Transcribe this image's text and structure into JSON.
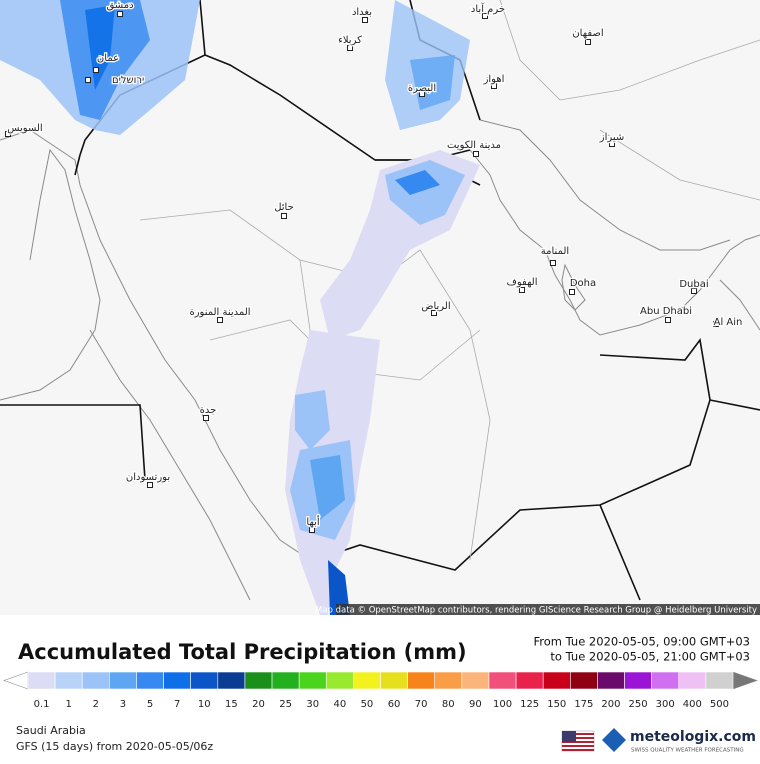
{
  "map": {
    "attribution": "Map data © OpenStreetMap contributors, rendering GIScience Research Group @ Heidelberg University",
    "cities": [
      "دمشق",
      "بغداد",
      "خرم آباد",
      "كربلاء",
      "اصفهان",
      "عمان",
      "ירושלים",
      "البصرة",
      "اهواز",
      "السويس",
      "مدينة الكويت",
      "شيراز",
      "حائل",
      "المنامة",
      "الهفوف",
      "Doha",
      "Dubai",
      "الرياض",
      "المدينة المنورة",
      "Abu Dhabi",
      "Al Ain",
      "جدة",
      "بورتسودان",
      "أبها"
    ]
  },
  "legend": {
    "title": "Accumulated Total Precipitation (mm)",
    "from": "From Tue 2020-05-05, 09:00 GMT+03",
    "to": "to Tue 2020-05-05, 21:00 GMT+03",
    "bins": [
      {
        "label": 0.1,
        "color": "#dcdcf5"
      },
      {
        "label": 1,
        "color": "#b9d2f7"
      },
      {
        "label": 2,
        "color": "#9cc3f7"
      },
      {
        "label": 3,
        "color": "#5fa6f2"
      },
      {
        "label": 5,
        "color": "#3689f0"
      },
      {
        "label": 7,
        "color": "#0f6fe8"
      },
      {
        "label": 10,
        "color": "#0a56c8"
      },
      {
        "label": 15,
        "color": "#0a3c94"
      },
      {
        "label": 20,
        "color": "#1a8f1a"
      },
      {
        "label": 25,
        "color": "#22b01e"
      },
      {
        "label": 30,
        "color": "#4ad41e"
      },
      {
        "label": 40,
        "color": "#98ea2e"
      },
      {
        "label": 50,
        "color": "#f4f21e"
      },
      {
        "label": 60,
        "color": "#e6df1e"
      },
      {
        "label": 70,
        "color": "#f7841a"
      },
      {
        "label": 80,
        "color": "#f99e47"
      },
      {
        "label": 90,
        "color": "#fbb57a"
      },
      {
        "label": 100,
        "color": "#f0507a"
      },
      {
        "label": 125,
        "color": "#e8224a"
      },
      {
        "label": 150,
        "color": "#c8001a"
      },
      {
        "label": 175,
        "color": "#8e0012"
      },
      {
        "label": 200,
        "color": "#6a0a6a"
      },
      {
        "label": 250,
        "color": "#9b14d6"
      },
      {
        "label": 300,
        "color": "#d070f0"
      },
      {
        "label": 400,
        "color": "#eec0f4"
      },
      {
        "label": 500,
        "color": "#d0d0d0"
      }
    ]
  },
  "footer": {
    "region": "Saudi Arabia",
    "model": "GFS (15 days) from  2020-05-05/06z",
    "brand": "meteologix.com",
    "tagline": "SWISS QUALITY WEATHER FORECASTING"
  }
}
